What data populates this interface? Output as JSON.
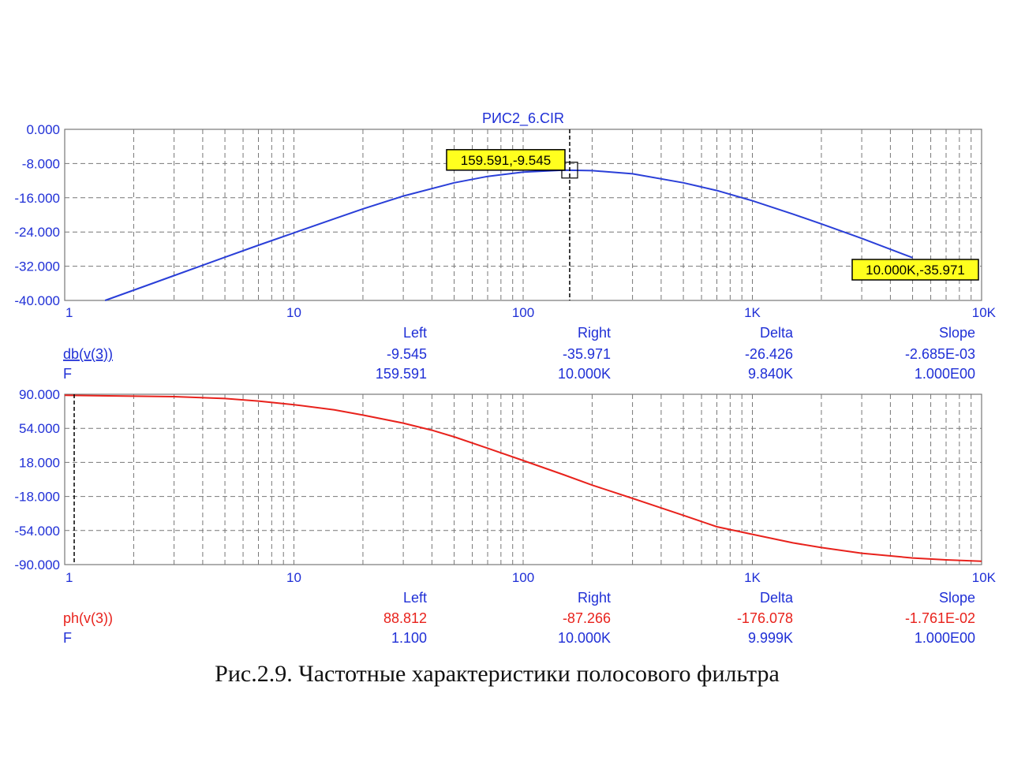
{
  "caption": "Рис.2.9. Частотные характеристики полосового фильтра",
  "chart_data": [
    {
      "type": "line",
      "title": "РИС2_6.CIR",
      "xscale": "log",
      "xlim": [
        1,
        10000
      ],
      "ylim": [
        -40,
        0
      ],
      "grid": true,
      "x_tick_labels": [
        "1",
        "10",
        "100",
        "1K",
        "10K"
      ],
      "y_tick_labels": [
        "0.000",
        "-8.000",
        "-16.000",
        "-24.000",
        "-32.000",
        "-40.000"
      ],
      "series": [
        {
          "name": "db(v(3))",
          "color": "#2a3fd8",
          "x": [
            1.5,
            2,
            3,
            5,
            7,
            10,
            15,
            20,
            30,
            50,
            70,
            100,
            150,
            200,
            300,
            500,
            700,
            1000,
            1500,
            2000,
            3000,
            5000
          ],
          "y": [
            -40.0,
            -37.6,
            -34.2,
            -29.9,
            -27.1,
            -24.2,
            -20.9,
            -18.6,
            -15.6,
            -12.5,
            -11.0,
            -10.0,
            -9.55,
            -9.65,
            -10.4,
            -12.5,
            -14.3,
            -16.7,
            -19.8,
            -22.1,
            -25.5,
            -30.0
          ]
        }
      ],
      "annotations": [
        {
          "text": "159.591,-9.545",
          "x": 159.591,
          "y": -9.545
        },
        {
          "text": "10.000K,-35.971",
          "x": 10000,
          "y": -35.971
        }
      ],
      "cursor_x": 159.591,
      "cursor_table": {
        "headers": [
          "Left",
          "Right",
          "Delta",
          "Slope"
        ],
        "rows": [
          {
            "label": "db(v(3))",
            "color": "#1f2fd6",
            "values": [
              "-9.545",
              "-35.971",
              "-26.426",
              "-2.685E-03"
            ]
          },
          {
            "label": "F",
            "color": "#1f2fd6",
            "values": [
              "159.591",
              "10.000K",
              "9.840K",
              "1.000E00"
            ]
          }
        ]
      }
    },
    {
      "type": "line",
      "title": "",
      "xscale": "log",
      "xlim": [
        1,
        10000
      ],
      "ylim": [
        -90,
        90
      ],
      "grid": true,
      "x_tick_labels": [
        "1",
        "10",
        "100",
        "1K",
        "10K"
      ],
      "y_tick_labels": [
        "90.000",
        "54.000",
        "18.000",
        "-18.000",
        "-54.000",
        "-90.000"
      ],
      "series": [
        {
          "name": "ph(v(3))",
          "color": "#e8221c",
          "x": [
            1,
            2,
            3,
            5,
            7,
            10,
            15,
            20,
            30,
            40,
            50,
            70,
            100,
            150,
            200,
            300,
            500,
            700,
            1000,
            1500,
            2000,
            3000,
            5000,
            7000,
            10000
          ],
          "y": [
            89.0,
            88.0,
            87.5,
            85.5,
            82.8,
            79.0,
            73.5,
            68.0,
            59.5,
            52.0,
            45.0,
            33.0,
            20.0,
            5.0,
            -6.0,
            -20.0,
            -38.0,
            -50.0,
            -58.0,
            -67.0,
            -72.0,
            -78.0,
            -83.0,
            -85.0,
            -86.5
          ]
        }
      ],
      "cursor_x": 1.1,
      "cursor_table": {
        "headers": [
          "Left",
          "Right",
          "Delta",
          "Slope"
        ],
        "rows": [
          {
            "label": "ph(v(3))",
            "color": "#e8221c",
            "values": [
              "88.812",
              "-87.266",
              "-176.078",
              "-1.761E-02"
            ]
          },
          {
            "label": "F",
            "color": "#1f2fd6",
            "values": [
              "1.100",
              "10.000K",
              "9.999K",
              "1.000E00"
            ]
          }
        ]
      }
    }
  ]
}
